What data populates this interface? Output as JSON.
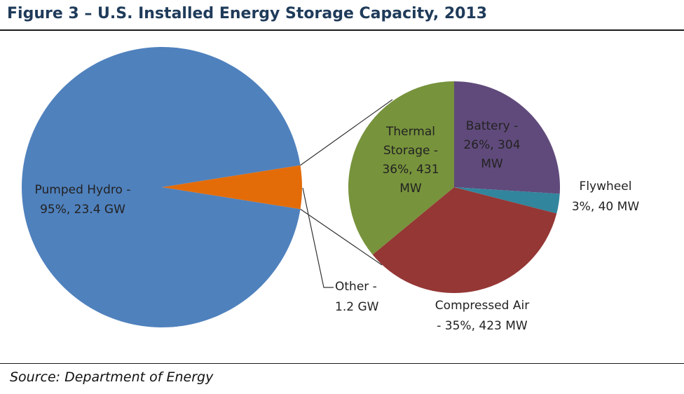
{
  "header": {
    "title": "Figure 3 – U.S. Installed Energy Storage Capacity, 2013"
  },
  "footer": {
    "source": "Source: Department of Energy"
  },
  "chart_data": [
    {
      "type": "pie",
      "slices": [
        {
          "name": "Pumped Hydro",
          "share": 95,
          "capacity": "23.4 GW",
          "color": "#4f81bd",
          "label_lines": [
            "Pumped Hydro -",
            "95%, 23.4 GW"
          ]
        },
        {
          "name": "Other",
          "share": 5,
          "capacity": "1.2 GW",
          "color": "#e36c09",
          "label_lines": [
            "Other -",
            "1.2 GW"
          ]
        }
      ]
    },
    {
      "type": "pie",
      "breakdown_of": "Other",
      "slices": [
        {
          "name": "Battery",
          "share": 26,
          "capacity": "304 MW",
          "color": "#604a7b",
          "label_lines": [
            "Battery -",
            "26%, 304",
            "MW"
          ]
        },
        {
          "name": "Flywheel",
          "share": 3,
          "capacity": "40 MW",
          "color": "#31859c",
          "label_lines": [
            "Flywheel",
            "3%, 40 MW"
          ]
        },
        {
          "name": "Compressed Air",
          "share": 35,
          "capacity": "423 MW",
          "color": "#953735",
          "label_lines": [
            "Compressed Air",
            "- 35%, 423 MW"
          ]
        },
        {
          "name": "Thermal Storage",
          "share": 36,
          "capacity": "431 MW",
          "color": "#77933c",
          "label_lines": [
            "Thermal",
            "Storage -",
            "36%, 431",
            "MW"
          ]
        }
      ]
    }
  ]
}
